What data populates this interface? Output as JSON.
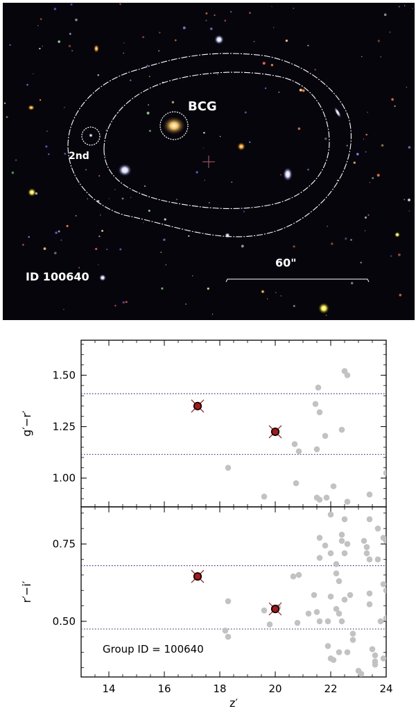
{
  "image_panel": {
    "bcg_label": "BCG",
    "second_label": "2nd",
    "id_label": "ID 100640",
    "scale_label": "60\"",
    "background_color": "#06050c",
    "contour_color": "#ffffff"
  },
  "chart_data": [
    {
      "type": "scatter",
      "xlabel": "",
      "ylabel": "g′−r′",
      "xlim": [
        13,
        24
      ],
      "ylim": [
        0.86,
        1.67
      ],
      "yticks": [
        1.0,
        1.25,
        1.5
      ],
      "ytick_labels": [
        "1.00",
        "1.25",
        "1.50"
      ],
      "hlines": [
        1.115,
        1.41
      ],
      "hline_color": "#2b2bd0",
      "members": [
        {
          "x": 17.2,
          "y": 1.35
        },
        {
          "x": 20.0,
          "y": 1.225
        }
      ],
      "member_color": "#b01515",
      "field_color": "#c2c2c2",
      "field": [
        {
          "x": 18.3,
          "y": 1.05
        },
        {
          "x": 19.6,
          "y": 0.91
        },
        {
          "x": 20.7,
          "y": 1.165
        },
        {
          "x": 20.85,
          "y": 1.13
        },
        {
          "x": 20.75,
          "y": 0.975
        },
        {
          "x": 21.45,
          "y": 1.36
        },
        {
          "x": 21.55,
          "y": 1.44
        },
        {
          "x": 21.6,
          "y": 1.32
        },
        {
          "x": 21.5,
          "y": 1.14
        },
        {
          "x": 21.8,
          "y": 1.205
        },
        {
          "x": 21.5,
          "y": 0.905
        },
        {
          "x": 21.6,
          "y": 0.895
        },
        {
          "x": 21.85,
          "y": 0.905
        },
        {
          "x": 22.1,
          "y": 0.96
        },
        {
          "x": 22.4,
          "y": 1.235
        },
        {
          "x": 22.5,
          "y": 1.52
        },
        {
          "x": 22.6,
          "y": 1.5
        },
        {
          "x": 22.6,
          "y": 0.885
        },
        {
          "x": 23.4,
          "y": 0.92
        },
        {
          "x": 24.0,
          "y": 1.025
        }
      ]
    },
    {
      "type": "scatter",
      "xlabel": "z′",
      "ylabel": "r′−i′",
      "xlim": [
        13,
        24
      ],
      "ylim": [
        0.32,
        0.87
      ],
      "xticks": [
        14,
        16,
        18,
        20,
        22,
        24
      ],
      "xtick_labels": [
        "14",
        "16",
        "18",
        "20",
        "22",
        "24"
      ],
      "yticks": [
        0.5,
        0.75
      ],
      "ytick_labels": [
        "0.50",
        "0.75"
      ],
      "hlines": [
        0.475,
        0.68
      ],
      "hline_color": "#2b2bd0",
      "annotation": "Group ID = 100640",
      "members": [
        {
          "x": 17.2,
          "y": 0.645
        },
        {
          "x": 20.0,
          "y": 0.54
        }
      ],
      "member_color": "#b01515",
      "field_color": "#c2c2c2",
      "field": [
        {
          "x": 18.3,
          "y": 0.565
        },
        {
          "x": 18.2,
          "y": 0.47
        },
        {
          "x": 18.3,
          "y": 0.45
        },
        {
          "x": 19.6,
          "y": 0.535
        },
        {
          "x": 19.8,
          "y": 0.49
        },
        {
          "x": 20.1,
          "y": 0.545
        },
        {
          "x": 20.65,
          "y": 0.645
        },
        {
          "x": 20.85,
          "y": 0.65
        },
        {
          "x": 20.8,
          "y": 0.495
        },
        {
          "x": 21.2,
          "y": 0.525
        },
        {
          "x": 21.4,
          "y": 0.585
        },
        {
          "x": 21.5,
          "y": 0.53
        },
        {
          "x": 21.6,
          "y": 0.5
        },
        {
          "x": 21.6,
          "y": 0.77
        },
        {
          "x": 21.6,
          "y": 0.705
        },
        {
          "x": 21.8,
          "y": 0.745
        },
        {
          "x": 21.9,
          "y": 0.5
        },
        {
          "x": 22.0,
          "y": 0.58
        },
        {
          "x": 21.9,
          "y": 0.42
        },
        {
          "x": 22.0,
          "y": 0.38
        },
        {
          "x": 22.1,
          "y": 0.375
        },
        {
          "x": 22.0,
          "y": 0.845
        },
        {
          "x": 22.0,
          "y": 0.72
        },
        {
          "x": 22.2,
          "y": 0.655
        },
        {
          "x": 22.3,
          "y": 0.63
        },
        {
          "x": 22.2,
          "y": 0.685
        },
        {
          "x": 22.3,
          "y": 0.4
        },
        {
          "x": 22.2,
          "y": 0.54
        },
        {
          "x": 22.3,
          "y": 0.525
        },
        {
          "x": 22.4,
          "y": 0.5
        },
        {
          "x": 22.4,
          "y": 0.78
        },
        {
          "x": 22.4,
          "y": 0.76
        },
        {
          "x": 22.5,
          "y": 0.83
        },
        {
          "x": 22.6,
          "y": 0.75
        },
        {
          "x": 22.5,
          "y": 0.72
        },
        {
          "x": 22.5,
          "y": 0.57
        },
        {
          "x": 22.6,
          "y": 0.4
        },
        {
          "x": 22.7,
          "y": 0.585
        },
        {
          "x": 22.8,
          "y": 0.46
        },
        {
          "x": 22.8,
          "y": 0.44
        },
        {
          "x": 23.0,
          "y": 0.34
        },
        {
          "x": 23.1,
          "y": 0.33
        },
        {
          "x": 23.2,
          "y": 0.76
        },
        {
          "x": 23.3,
          "y": 0.74
        },
        {
          "x": 23.3,
          "y": 0.72
        },
        {
          "x": 23.4,
          "y": 0.83
        },
        {
          "x": 23.4,
          "y": 0.7
        },
        {
          "x": 23.4,
          "y": 0.59
        },
        {
          "x": 23.4,
          "y": 0.555
        },
        {
          "x": 23.5,
          "y": 0.41
        },
        {
          "x": 23.6,
          "y": 0.39
        },
        {
          "x": 23.6,
          "y": 0.37
        },
        {
          "x": 23.6,
          "y": 0.36
        },
        {
          "x": 23.7,
          "y": 0.7
        },
        {
          "x": 23.7,
          "y": 0.8
        },
        {
          "x": 23.8,
          "y": 0.5
        },
        {
          "x": 23.9,
          "y": 0.38
        },
        {
          "x": 23.9,
          "y": 0.62
        },
        {
          "x": 23.9,
          "y": 0.77
        },
        {
          "x": 24.0,
          "y": 0.76
        },
        {
          "x": 24.0,
          "y": 0.6
        },
        {
          "x": 24.0,
          "y": 0.51
        }
      ]
    }
  ]
}
